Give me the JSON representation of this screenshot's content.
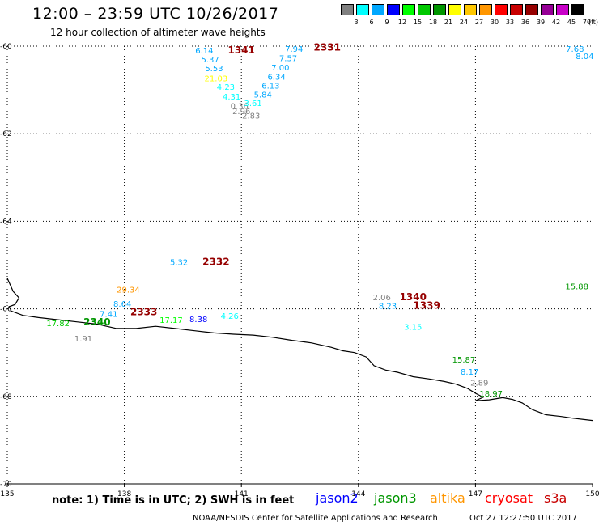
{
  "header": {
    "title": "12:00 – 23:59 UTC 10/26/2017",
    "subtitle": "12 hour collection of altimeter wave heights"
  },
  "scale": {
    "unit_label": "(ft)",
    "bins": [
      {
        "label": "3",
        "color": "#808080"
      },
      {
        "label": "6",
        "color": "#00ffff"
      },
      {
        "label": "9",
        "color": "#00a8ff"
      },
      {
        "label": "12",
        "color": "#0000ff"
      },
      {
        "label": "15",
        "color": "#00ff00"
      },
      {
        "label": "18",
        "color": "#00c800"
      },
      {
        "label": "21",
        "color": "#009600"
      },
      {
        "label": "24",
        "color": "#ffff00"
      },
      {
        "label": "27",
        "color": "#ffc800"
      },
      {
        "label": "30",
        "color": "#ff9600"
      },
      {
        "label": "33",
        "color": "#ff0000"
      },
      {
        "label": "36",
        "color": "#c80000"
      },
      {
        "label": "39",
        "color": "#960000"
      },
      {
        "label": "42",
        "color": "#960096"
      },
      {
        "label": "45",
        "color": "#c800c8"
      },
      {
        "label": "70",
        "color": "#000000"
      }
    ]
  },
  "map": {
    "lon_range": [
      135,
      150
    ],
    "lat_range": [
      -60,
      -70
    ],
    "lon_ticks": [
      "135",
      "138",
      "141",
      "144",
      "147",
      "150"
    ],
    "lat_ticks": [
      "-60",
      "-62",
      "-64",
      "-66",
      "-68",
      "-70"
    ],
    "coastline": [
      [
        135.0,
        -65.3
      ],
      [
        135.15,
        -65.6
      ],
      [
        135.3,
        -65.75
      ],
      [
        135.2,
        -65.9
      ],
      [
        135.05,
        -65.95
      ],
      [
        135.1,
        -66.05
      ],
      [
        135.4,
        -66.15
      ],
      [
        135.8,
        -66.2
      ],
      [
        136.3,
        -66.25
      ],
      [
        136.8,
        -66.3
      ],
      [
        137.3,
        -66.35
      ],
      [
        137.8,
        -66.45
      ],
      [
        138.3,
        -66.45
      ],
      [
        138.8,
        -66.4
      ],
      [
        139.3,
        -66.45
      ],
      [
        139.8,
        -66.5
      ],
      [
        140.3,
        -66.55
      ],
      [
        140.8,
        -66.58
      ],
      [
        141.3,
        -66.6
      ],
      [
        141.8,
        -66.65
      ],
      [
        142.3,
        -66.72
      ],
      [
        142.8,
        -66.78
      ],
      [
        143.3,
        -66.88
      ],
      [
        143.6,
        -66.96
      ],
      [
        143.9,
        -67.0
      ],
      [
        144.2,
        -67.1
      ],
      [
        144.4,
        -67.3
      ],
      [
        144.7,
        -67.4
      ],
      [
        145.0,
        -67.45
      ],
      [
        145.4,
        -67.55
      ],
      [
        145.8,
        -67.6
      ],
      [
        146.2,
        -67.66
      ],
      [
        146.5,
        -67.72
      ],
      [
        146.8,
        -67.82
      ],
      [
        147.0,
        -67.93
      ],
      [
        147.2,
        -68.02
      ],
      [
        147.0,
        -68.1
      ],
      [
        147.35,
        -68.08
      ],
      [
        147.7,
        -68.03
      ],
      [
        147.95,
        -68.07
      ],
      [
        148.2,
        -68.15
      ],
      [
        148.45,
        -68.3
      ],
      [
        148.8,
        -68.42
      ],
      [
        149.2,
        -68.46
      ],
      [
        149.5,
        -68.5
      ],
      [
        149.8,
        -68.53
      ],
      [
        150.0,
        -68.55
      ]
    ],
    "observations": [
      {
        "value": "6.14",
        "lon": 140.05,
        "lat": -60.17,
        "color": "#00a8ff"
      },
      {
        "value": "5.37",
        "lon": 140.2,
        "lat": -60.37,
        "color": "#00a8ff"
      },
      {
        "value": "5.53",
        "lon": 140.3,
        "lat": -60.57,
        "color": "#00a8ff"
      },
      {
        "value": "21.03",
        "lon": 140.35,
        "lat": -60.8,
        "color": "#ffff00"
      },
      {
        "value": "4.23",
        "lon": 140.6,
        "lat": -61.0,
        "color": "#00ffff"
      },
      {
        "value": "4.31",
        "lon": 140.75,
        "lat": -61.22,
        "color": "#00ffff"
      },
      {
        "value": "0.36",
        "lon": 140.95,
        "lat": -61.43,
        "color": "#808080"
      },
      {
        "value": "2.96",
        "lon": 141.0,
        "lat": -61.55,
        "color": "#808080"
      },
      {
        "value": "2.83",
        "lon": 141.25,
        "lat": -61.65,
        "color": "#808080"
      },
      {
        "value": "3.61",
        "lon": 141.3,
        "lat": -61.37,
        "color": "#00ffff"
      },
      {
        "value": "5.84",
        "lon": 141.55,
        "lat": -61.17,
        "color": "#00a8ff"
      },
      {
        "value": "6.13",
        "lon": 141.75,
        "lat": -60.97,
        "color": "#00a8ff"
      },
      {
        "value": "6.34",
        "lon": 141.9,
        "lat": -60.77,
        "color": "#00a8ff"
      },
      {
        "value": "7.00",
        "lon": 142.0,
        "lat": -60.55,
        "color": "#00a8ff"
      },
      {
        "value": "7.57",
        "lon": 142.2,
        "lat": -60.34,
        "color": "#00a8ff"
      },
      {
        "value": "7.94",
        "lon": 142.35,
        "lat": -60.13,
        "color": "#00a8ff"
      },
      {
        "value": "7.68",
        "lon": 149.55,
        "lat": -60.13,
        "color": "#00a8ff"
      },
      {
        "value": "8.04",
        "lon": 149.8,
        "lat": -60.3,
        "color": "#00a8ff"
      },
      {
        "value": "5.32",
        "lon": 139.4,
        "lat": -65.0,
        "color": "#00a8ff"
      },
      {
        "value": "29.34",
        "lon": 138.1,
        "lat": -65.63,
        "color": "#ff9600"
      },
      {
        "value": "8.64",
        "lon": 137.95,
        "lat": -65.95,
        "color": "#00a8ff"
      },
      {
        "value": "7.41",
        "lon": 137.6,
        "lat": -66.18,
        "color": "#00a8ff"
      },
      {
        "value": "4.26",
        "lon": 140.7,
        "lat": -66.23,
        "color": "#00ffff"
      },
      {
        "value": "8.38",
        "lon": 139.9,
        "lat": -66.3,
        "color": "#0000ff"
      },
      {
        "value": "17.17",
        "lon": 139.2,
        "lat": -66.32,
        "color": "#00ff00"
      },
      {
        "value": "17.82",
        "lon": 136.3,
        "lat": -66.4,
        "color": "#00c800"
      },
      {
        "value": "1.91",
        "lon": 136.95,
        "lat": -66.75,
        "color": "#808080"
      },
      {
        "value": "2.06",
        "lon": 144.6,
        "lat": -65.8,
        "color": "#808080"
      },
      {
        "value": "8.23",
        "lon": 144.75,
        "lat": -66.0,
        "color": "#00a8ff"
      },
      {
        "value": "3.15",
        "lon": 145.4,
        "lat": -66.48,
        "color": "#00ffff"
      },
      {
        "value": "15.88",
        "lon": 149.6,
        "lat": -65.55,
        "color": "#009600"
      },
      {
        "value": "15.87",
        "lon": 146.7,
        "lat": -67.23,
        "color": "#009600"
      },
      {
        "value": "8.17",
        "lon": 146.85,
        "lat": -67.5,
        "color": "#00a8ff"
      },
      {
        "value": "2.89",
        "lon": 147.1,
        "lat": -67.75,
        "color": "#808080"
      },
      {
        "value": "18.97",
        "lon": 147.4,
        "lat": -68.0,
        "color": "#009600"
      }
    ],
    "time_labels": [
      {
        "value": "1341",
        "lon": 141.0,
        "lat": -60.17,
        "color": "#960000"
      },
      {
        "value": "2331",
        "lon": 143.2,
        "lat": -60.1,
        "color": "#960000"
      },
      {
        "value": "2332",
        "lon": 140.35,
        "lat": -65.0,
        "color": "#960000"
      },
      {
        "value": "2333",
        "lon": 138.5,
        "lat": -66.15,
        "color": "#960000"
      },
      {
        "value": "2340",
        "lon": 137.3,
        "lat": -66.38,
        "color": "#009600"
      },
      {
        "value": "1340",
        "lon": 145.4,
        "lat": -65.8,
        "color": "#960000"
      },
      {
        "value": "1339",
        "lon": 145.75,
        "lat": -66.0,
        "color": "#960000"
      }
    ]
  },
  "footer": {
    "note": "note: 1) Time is in UTC; 2) SWH is in feet",
    "legend": [
      {
        "label": "jason2",
        "color": "#0000ff"
      },
      {
        "label": "jason3",
        "color": "#009600"
      },
      {
        "label": "altika",
        "color": "#ff9600"
      },
      {
        "label": "cryosat",
        "color": "#ff0000"
      },
      {
        "label": "s3a",
        "color": "#c80000"
      }
    ],
    "credit": "NOAA/NESDIS Center for Satellite Applications and Research",
    "timestamp": "Oct 27 12:27:50 UTC 2017"
  }
}
